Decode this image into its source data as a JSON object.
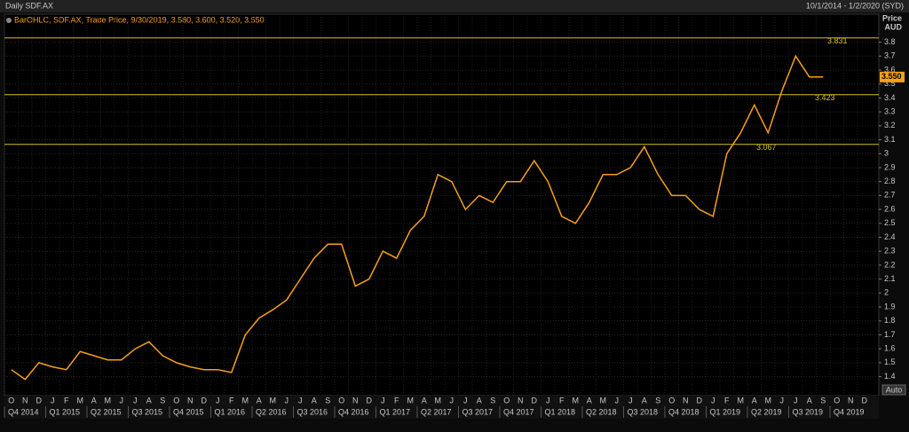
{
  "chart_data": {
    "type": "line",
    "title": "Daily SDF.AX",
    "date_range": "10/1/2014 - 1/2/2020 (SYD)",
    "legend_text": "BarOHLC, SDF.AX, Trade Price, 9/30/2019, 3.580, 3.600, 3.520, 3.550",
    "y_axis_title": "Price",
    "y_axis_unit": "AUD",
    "auto_button": "Auto",
    "x": [
      "2014-10",
      "2014-11",
      "2014-12",
      "2015-01",
      "2015-02",
      "2015-03",
      "2015-04",
      "2015-05",
      "2015-06",
      "2015-07",
      "2015-08",
      "2015-09",
      "2015-10",
      "2015-11",
      "2015-12",
      "2016-01",
      "2016-02",
      "2016-03",
      "2016-04",
      "2016-05",
      "2016-06",
      "2016-07",
      "2016-08",
      "2016-09",
      "2016-10",
      "2016-11",
      "2016-12",
      "2017-01",
      "2017-02",
      "2017-03",
      "2017-04",
      "2017-05",
      "2017-06",
      "2017-07",
      "2017-08",
      "2017-09",
      "2017-10",
      "2017-11",
      "2017-12",
      "2018-01",
      "2018-02",
      "2018-03",
      "2018-04",
      "2018-05",
      "2018-06",
      "2018-07",
      "2018-08",
      "2018-09",
      "2018-10",
      "2018-11",
      "2018-12",
      "2019-01",
      "2019-02",
      "2019-03",
      "2019-04",
      "2019-05",
      "2019-06",
      "2019-07",
      "2019-08",
      "2019-09"
    ],
    "series": [
      {
        "name": "SDF.AX",
        "color": "#f5a01a",
        "values": [
          1.45,
          1.38,
          1.5,
          1.47,
          1.45,
          1.58,
          1.55,
          1.52,
          1.52,
          1.6,
          1.65,
          1.55,
          1.5,
          1.47,
          1.45,
          1.45,
          1.43,
          1.7,
          1.82,
          1.88,
          1.95,
          2.1,
          2.25,
          2.35,
          2.35,
          2.05,
          2.1,
          2.3,
          2.25,
          2.45,
          2.55,
          2.85,
          2.8,
          2.6,
          2.7,
          2.65,
          2.8,
          2.8,
          2.95,
          2.8,
          2.55,
          2.5,
          2.65,
          2.85,
          2.85,
          2.9,
          3.05,
          2.85,
          2.7,
          2.7,
          2.6,
          2.55,
          3.0,
          3.15,
          3.35,
          3.15,
          3.45,
          3.7,
          3.55,
          3.55
        ]
      }
    ],
    "month_labels": [
      "O",
      "N",
      "D",
      "J",
      "F",
      "M",
      "A",
      "M",
      "J",
      "J",
      "A",
      "S",
      "O",
      "N",
      "D",
      "J",
      "F",
      "M",
      "A",
      "M",
      "J",
      "J",
      "A",
      "S",
      "O",
      "N",
      "D",
      "J",
      "F",
      "M",
      "A",
      "M",
      "J",
      "J",
      "A",
      "S",
      "O",
      "N",
      "D",
      "J",
      "F",
      "M",
      "A",
      "M",
      "J",
      "J",
      "A",
      "S",
      "O",
      "N",
      "D",
      "J",
      "F",
      "M",
      "A",
      "M",
      "J",
      "J",
      "A",
      "S",
      "O",
      "N",
      "D"
    ],
    "quarter_labels": [
      "Q4 2014",
      "Q1 2015",
      "Q2 2015",
      "Q3 2015",
      "Q4 2015",
      "Q1 2016",
      "Q2 2016",
      "Q3 2016",
      "Q4 2016",
      "Q1 2017",
      "Q2 2017",
      "Q3 2017",
      "Q4 2017",
      "Q1 2018",
      "Q2 2018",
      "Q3 2018",
      "Q4 2018",
      "Q1 2019",
      "Q2 2019",
      "Q3 2019",
      "Q4 2019"
    ],
    "levels": [
      3.831,
      3.423,
      3.067
    ],
    "level_color": "#d8c21a",
    "last_price": 3.55,
    "last_price_label": "3.550",
    "ylim": [
      1.27,
      3.88
    ],
    "yticks": [
      1.4,
      1.5,
      1.6,
      1.7,
      1.8,
      1.9,
      2,
      2.1,
      2.2,
      2.3,
      2.4,
      2.5,
      2.6,
      2.7,
      2.8,
      2.9,
      3,
      3.1,
      3.2,
      3.3,
      3.4,
      3.5,
      3.6,
      3.7,
      3.8
    ],
    "grid": true
  }
}
